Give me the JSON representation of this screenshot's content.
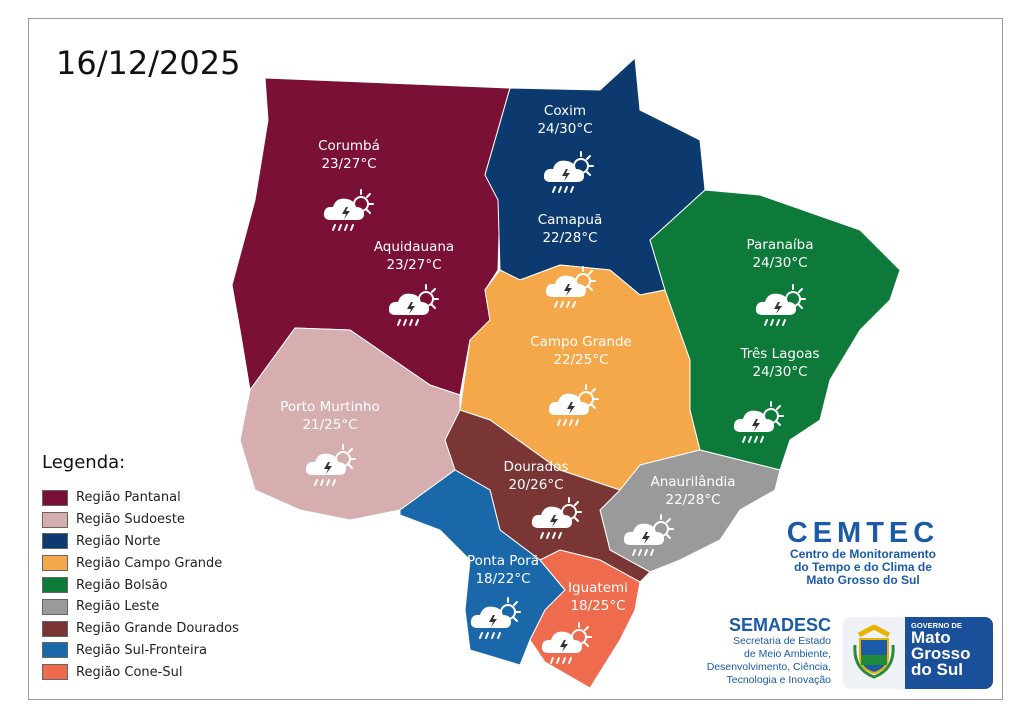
{
  "date": "16/12/2025",
  "regions": [
    {
      "name": "Região Pantanal",
      "color": "#7a1035"
    },
    {
      "name": "Região Sudoeste",
      "color": "#d6aeb0"
    },
    {
      "name": "Região Norte",
      "color": "#0d3a6e"
    },
    {
      "name": "Região Campo Grande",
      "color": "#f5a84a"
    },
    {
      "name": "Região Bolsão",
      "color": "#0e7a3a"
    },
    {
      "name": "Região Leste",
      "color": "#9a9a9a"
    },
    {
      "name": "Região Grande Dourados",
      "color": "#7a3535"
    },
    {
      "name": "Região Sul-Fronteira",
      "color": "#1a68aa"
    },
    {
      "name": "Região Cone-Sul",
      "color": "#ee6c4d"
    }
  ],
  "legend_title": "Legenda:",
  "cities": [
    {
      "name": "Corumbá",
      "temp": "23/27°C",
      "icon": "partly-cloudy-storm-rain-icon"
    },
    {
      "name": "Aquidauana",
      "temp": "23/27°C",
      "icon": "partly-cloudy-storm-rain-icon"
    },
    {
      "name": "Coxim",
      "temp": "24/30°C",
      "icon": "partly-cloudy-storm-rain-icon"
    },
    {
      "name": "Camapuã",
      "temp": "22/28°C",
      "icon": "partly-cloudy-storm-rain-icon"
    },
    {
      "name": "Paranaíba",
      "temp": "24/30°C",
      "icon": "partly-cloudy-storm-rain-icon"
    },
    {
      "name": "Três Lagoas",
      "temp": "24/30°C",
      "icon": "partly-cloudy-storm-rain-icon"
    },
    {
      "name": "Campo Grande",
      "temp": "22/25°C",
      "icon": "partly-cloudy-storm-rain-icon"
    },
    {
      "name": "Porto Murtinho",
      "temp": "21/25°C",
      "icon": "partly-cloudy-storm-rain-icon"
    },
    {
      "name": "Dourados",
      "temp": "20/26°C",
      "icon": "partly-cloudy-storm-rain-icon"
    },
    {
      "name": "Anaurilândia",
      "temp": "22/28°C",
      "icon": "partly-cloudy-storm-rain-icon"
    },
    {
      "name": "Ponta Porã",
      "temp": "18/22°C",
      "icon": "partly-cloudy-storm-rain-icon"
    },
    {
      "name": "Iguatemi",
      "temp": "18/25°C",
      "icon": "partly-cloudy-storm-rain-icon"
    }
  ],
  "cemtec": {
    "title": "CEMTEC",
    "line1": "Centro de Monitoramento",
    "line2": "do Tempo e do Clima de",
    "line3": "Mato Grosso do Sul"
  },
  "semadesc": {
    "title": "SEMADESC",
    "line1": "Secretaria de Estado",
    "line2": "de Meio Ambiente,",
    "line3": "Desenvolvimento, Ciência,",
    "line4": "Tecnologia e Inovação"
  },
  "gov": {
    "small": "GOVERNO DE",
    "line1": "Mato",
    "line2": "Grosso",
    "line3": "do Sul"
  }
}
